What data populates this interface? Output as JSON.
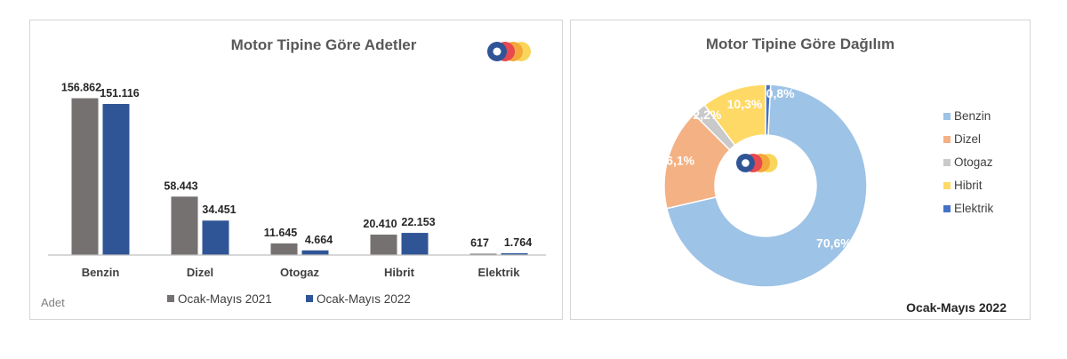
{
  "colors": {
    "series_2021": "#767171",
    "series_2022": "#2F5597",
    "axis": "#bfbfbf",
    "title": "#595959",
    "label": "#262626",
    "logo_blue": "#2F5597",
    "logo_red": "#E8484F",
    "logo_orange": "#F4A83A",
    "logo_yellow": "#F9D65B"
  },
  "chart_data": [
    {
      "type": "bar",
      "title": "Motor Tipine Göre Adetler",
      "categories": [
        "Benzin",
        "Dizel",
        "Otogaz",
        "Hibrit",
        "Elektrik"
      ],
      "series": [
        {
          "name": "Ocak-Mayıs 2021",
          "values": [
            156862,
            58443,
            11645,
            20410,
            617
          ],
          "labels": [
            "156.862",
            "58.443",
            "11.645",
            "20.410",
            "617"
          ]
        },
        {
          "name": "Ocak-Mayıs 2022",
          "values": [
            151116,
            34451,
            4664,
            22153,
            1764
          ],
          "labels": [
            "151.116",
            "34.451",
            "4.664",
            "22.153",
            "1.764"
          ]
        }
      ],
      "ylabel": "Adet",
      "ylim": [
        0,
        160000
      ],
      "grid": false,
      "legend": "bottom"
    },
    {
      "type": "pie",
      "subtype": "doughnut",
      "title": "Motor Tipine Göre Dağılım",
      "categories": [
        "Benzin",
        "Dizel",
        "Otogaz",
        "Hibrit",
        "Elektrik"
      ],
      "values": [
        70.6,
        16.1,
        2.2,
        10.3,
        0.8
      ],
      "labels": [
        "70,6%",
        "16,1%",
        "2,2%",
        "10,3%",
        "0,8%"
      ],
      "colors": [
        "#9DC3E6",
        "#F4B183",
        "#C9C9C9",
        "#FFD966",
        "#4472C4"
      ],
      "legend": "right",
      "period": "Ocak-Mayıs 2022"
    }
  ]
}
